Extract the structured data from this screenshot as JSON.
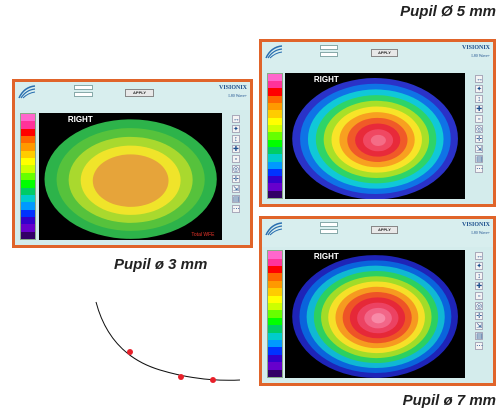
{
  "captions": {
    "pupil_5": "Pupil Ø 5 mm",
    "pupil_3": "Pupil ø 3 mm",
    "pupil_7": "Pupil ø 7 mm"
  },
  "screen": {
    "eye_label": "RIGHT",
    "map_label": "Total WFE",
    "apply_label": "APPLY",
    "brand_line1": "VISIONIX",
    "brand_line2": "L80 Wave+"
  },
  "colors": {
    "frame": "#e0642a",
    "app_bg": "#d4ecec",
    "map_bg": "#000000",
    "scale": [
      "#ff66cc",
      "#ff3399",
      "#ff0000",
      "#ff6600",
      "#ff9900",
      "#ffcc00",
      "#ffff00",
      "#ccff00",
      "#66ff00",
      "#00ff00",
      "#00cc66",
      "#00cccc",
      "#0099ff",
      "#0033ff",
      "#3300cc",
      "#6600cc",
      "#330066"
    ],
    "pupil_3_rings": [
      "#2db34a",
      "#56c23c",
      "#a9d92e",
      "#f0e42a",
      "#e6a43a"
    ],
    "pupil_5_rings": [
      "#2a32c8",
      "#0f73e6",
      "#10c8d8",
      "#2ed468",
      "#a8e028",
      "#f8e428",
      "#f8a020",
      "#f05a28",
      "#e82a3a",
      "#f04862",
      "#f46c86"
    ],
    "pupil_7_rings": [
      "#1e24b8",
      "#0a64dc",
      "#10b8d4",
      "#2cd060",
      "#a2dc28",
      "#f6e028",
      "#f69a20",
      "#ee5426",
      "#e62838",
      "#ec4262",
      "#f26688",
      "#f88aa8"
    ]
  },
  "tools": [
    "↔",
    "✦",
    "↕",
    "✚",
    "▫",
    "◎",
    "✛",
    "⇲",
    "▤",
    "⋯"
  ]
}
